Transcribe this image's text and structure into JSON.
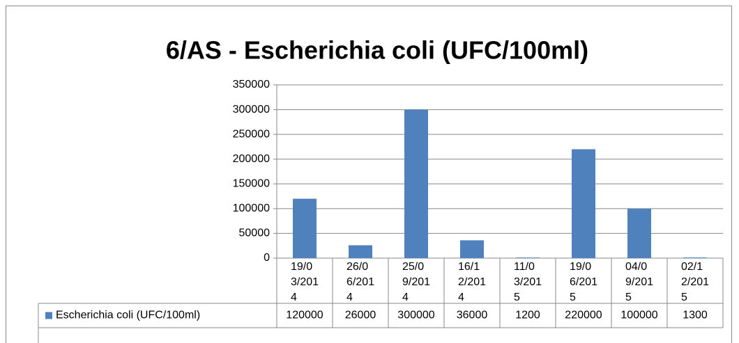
{
  "chart_data": {
    "type": "bar",
    "title": "6/AS - Escherichia coli (UFC/100ml)",
    "categories": [
      "19/03/2014",
      "26/06/2014",
      "25/09/2014",
      "16/12/2014",
      "11/03/2015",
      "19/06/2015",
      "04/09/2015",
      "02/12/2015"
    ],
    "series": [
      {
        "name": "Escherichia coli (UFC/100ml)",
        "color": "#4f81bd",
        "values": [
          120000,
          26000,
          300000,
          36000,
          1200,
          220000,
          100000,
          1300
        ]
      }
    ],
    "ylim": [
      0,
      350000
    ],
    "yticks": [
      0,
      50000,
      100000,
      150000,
      200000,
      250000,
      300000,
      350000
    ],
    "grid": true
  }
}
